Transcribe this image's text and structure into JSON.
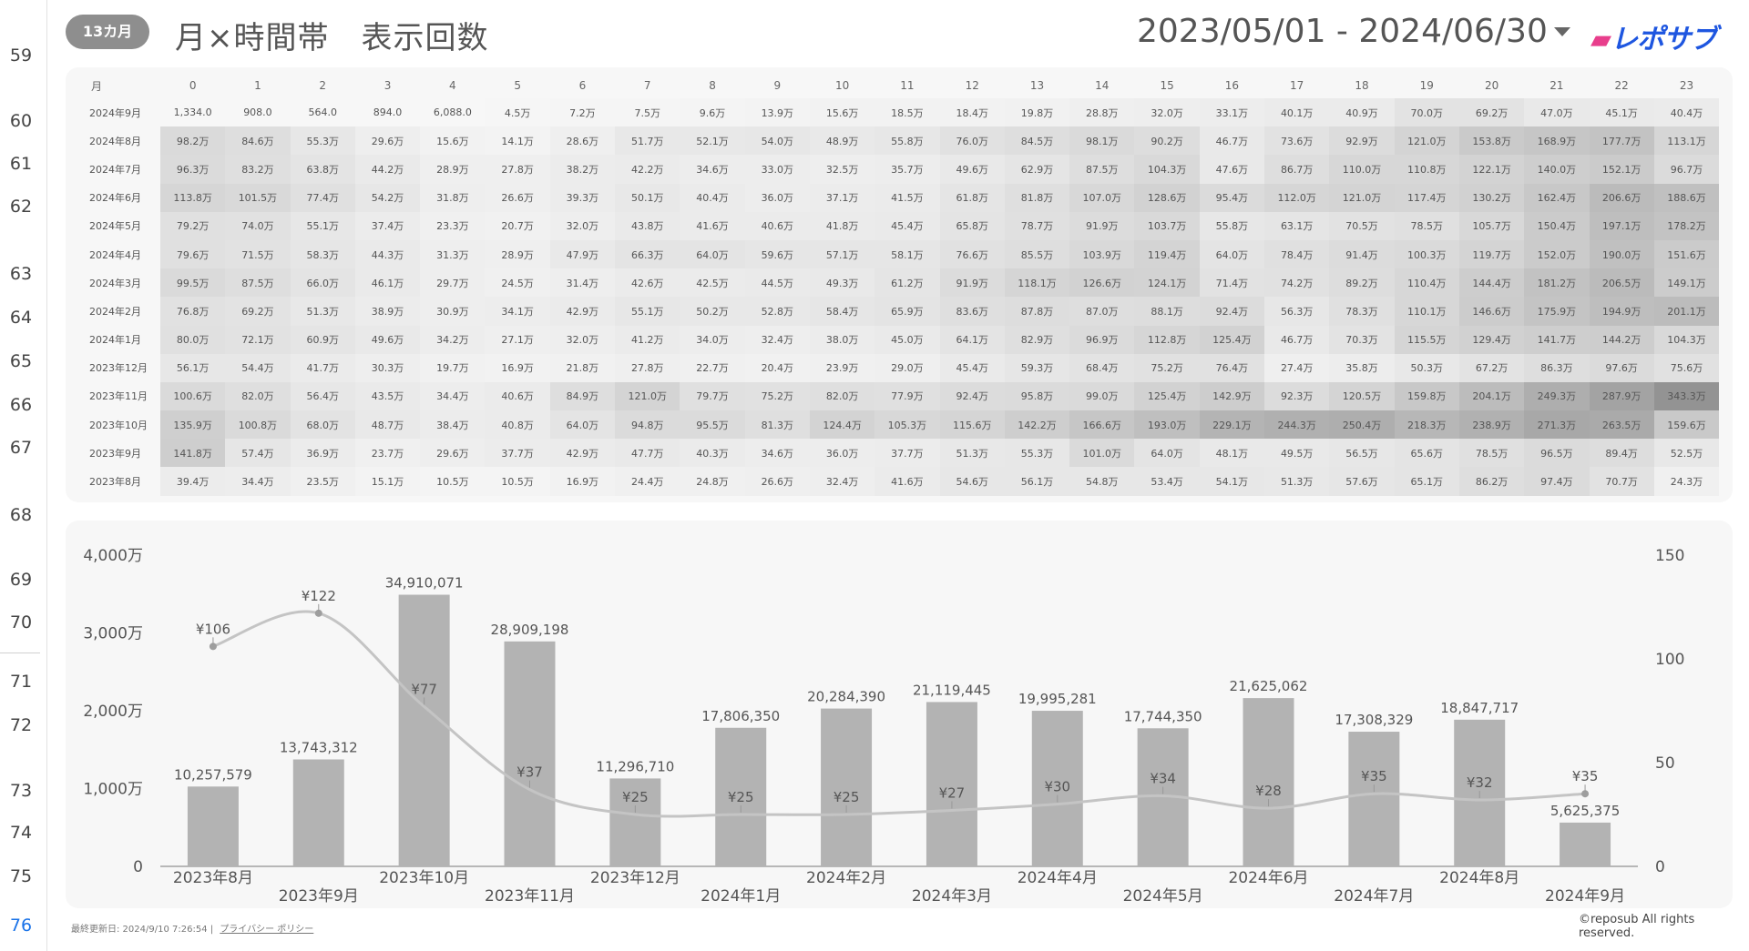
{
  "row_numbers": [
    "59",
    "60",
    "61",
    "62",
    "63",
    "64",
    "65",
    "66",
    "67",
    "68",
    "69",
    "70",
    "71",
    "72",
    "73",
    "74",
    "75",
    "76"
  ],
  "header": {
    "badge": "13カ月",
    "title": "月×時間帯　表示回数",
    "date_range": "2023/05/01 - 2024/06/30",
    "logo": "レポサブ"
  },
  "table": {
    "month_label": "月",
    "hours": [
      "0",
      "1",
      "2",
      "3",
      "4",
      "5",
      "6",
      "7",
      "8",
      "9",
      "10",
      "11",
      "12",
      "13",
      "14",
      "15",
      "16",
      "17",
      "18",
      "19",
      "20",
      "21",
      "22",
      "23"
    ],
    "rows": [
      {
        "month": "2024年9月",
        "values": [
          "1,334.0",
          "908.0",
          "564.0",
          "894.0",
          "6,088.0",
          "4.5万",
          "7.2万",
          "7.5万",
          "9.6万",
          "13.9万",
          "15.6万",
          "18.5万",
          "18.4万",
          "19.8万",
          "28.8万",
          "32.0万",
          "33.1万",
          "40.1万",
          "40.9万",
          "70.0万",
          "69.2万",
          "47.0万",
          "45.1万",
          "40.4万"
        ]
      },
      {
        "month": "2024年8月",
        "values": [
          "98.2万",
          "84.6万",
          "55.3万",
          "29.6万",
          "15.6万",
          "14.1万",
          "28.6万",
          "51.7万",
          "52.1万",
          "54.0万",
          "48.9万",
          "55.8万",
          "76.0万",
          "84.5万",
          "98.1万",
          "90.2万",
          "46.7万",
          "73.6万",
          "92.9万",
          "121.0万",
          "153.8万",
          "168.9万",
          "177.7万",
          "113.1万"
        ]
      },
      {
        "month": "2024年7月",
        "values": [
          "96.3万",
          "83.2万",
          "63.8万",
          "44.2万",
          "28.9万",
          "27.8万",
          "38.2万",
          "42.2万",
          "34.6万",
          "33.0万",
          "32.5万",
          "35.7万",
          "49.6万",
          "62.9万",
          "87.5万",
          "104.3万",
          "47.6万",
          "86.7万",
          "110.0万",
          "110.8万",
          "122.1万",
          "140.0万",
          "152.1万",
          "96.7万"
        ]
      },
      {
        "month": "2024年6月",
        "values": [
          "113.8万",
          "101.5万",
          "77.4万",
          "54.2万",
          "31.8万",
          "26.6万",
          "39.3万",
          "50.1万",
          "40.4万",
          "36.0万",
          "37.1万",
          "41.5万",
          "61.8万",
          "81.8万",
          "107.0万",
          "128.6万",
          "95.4万",
          "112.0万",
          "121.0万",
          "117.4万",
          "130.2万",
          "162.4万",
          "206.6万",
          "188.6万"
        ]
      },
      {
        "month": "2024年5月",
        "values": [
          "79.2万",
          "74.0万",
          "55.1万",
          "37.4万",
          "23.3万",
          "20.7万",
          "32.0万",
          "43.8万",
          "41.6万",
          "40.6万",
          "41.8万",
          "45.4万",
          "65.8万",
          "78.7万",
          "91.9万",
          "103.7万",
          "55.8万",
          "63.1万",
          "70.5万",
          "78.5万",
          "105.7万",
          "150.4万",
          "197.1万",
          "178.2万"
        ]
      },
      {
        "month": "2024年4月",
        "values": [
          "79.6万",
          "71.5万",
          "58.3万",
          "44.3万",
          "31.3万",
          "28.9万",
          "47.9万",
          "66.3万",
          "64.0万",
          "59.6万",
          "57.1万",
          "58.1万",
          "76.6万",
          "85.5万",
          "103.9万",
          "119.4万",
          "64.0万",
          "78.4万",
          "91.4万",
          "100.3万",
          "119.7万",
          "152.0万",
          "190.0万",
          "151.6万"
        ]
      },
      {
        "month": "2024年3月",
        "values": [
          "99.5万",
          "87.5万",
          "66.0万",
          "46.1万",
          "29.7万",
          "24.5万",
          "31.4万",
          "42.6万",
          "42.5万",
          "44.5万",
          "49.3万",
          "61.2万",
          "91.9万",
          "118.1万",
          "126.6万",
          "124.1万",
          "71.4万",
          "74.2万",
          "89.2万",
          "110.4万",
          "144.4万",
          "181.2万",
          "206.5万",
          "149.1万"
        ]
      },
      {
        "month": "2024年2月",
        "values": [
          "76.8万",
          "69.2万",
          "51.3万",
          "38.9万",
          "30.9万",
          "34.1万",
          "42.9万",
          "55.1万",
          "50.2万",
          "52.8万",
          "58.4万",
          "65.9万",
          "83.6万",
          "87.8万",
          "87.0万",
          "88.1万",
          "92.4万",
          "56.3万",
          "78.3万",
          "110.1万",
          "146.6万",
          "175.9万",
          "194.9万",
          "201.1万"
        ]
      },
      {
        "month": "2024年1月",
        "values": [
          "80.0万",
          "72.1万",
          "60.9万",
          "49.6万",
          "34.2万",
          "27.1万",
          "32.0万",
          "41.2万",
          "34.0万",
          "32.4万",
          "38.0万",
          "45.0万",
          "64.1万",
          "82.9万",
          "96.9万",
          "112.8万",
          "125.4万",
          "46.7万",
          "70.3万",
          "115.5万",
          "129.4万",
          "141.7万",
          "144.2万",
          "104.3万"
        ]
      },
      {
        "month": "2023年12月",
        "values": [
          "56.1万",
          "54.4万",
          "41.7万",
          "30.3万",
          "19.7万",
          "16.9万",
          "21.8万",
          "27.8万",
          "22.7万",
          "20.4万",
          "23.9万",
          "29.0万",
          "45.4万",
          "59.3万",
          "68.4万",
          "75.2万",
          "76.4万",
          "27.4万",
          "35.8万",
          "50.3万",
          "67.2万",
          "86.3万",
          "97.6万",
          "75.6万"
        ]
      },
      {
        "month": "2023年11月",
        "values": [
          "100.6万",
          "82.0万",
          "56.4万",
          "43.5万",
          "34.4万",
          "40.6万",
          "84.9万",
          "121.0万",
          "79.7万",
          "75.2万",
          "82.0万",
          "77.9万",
          "92.4万",
          "95.8万",
          "99.0万",
          "125.4万",
          "142.9万",
          "92.3万",
          "120.5万",
          "159.8万",
          "204.1万",
          "249.3万",
          "287.9万",
          "343.3万"
        ]
      },
      {
        "month": "2023年10月",
        "values": [
          "135.9万",
          "100.8万",
          "68.0万",
          "48.7万",
          "38.4万",
          "40.8万",
          "64.0万",
          "94.8万",
          "95.5万",
          "81.3万",
          "124.4万",
          "105.3万",
          "115.6万",
          "142.2万",
          "166.6万",
          "193.0万",
          "229.1万",
          "244.3万",
          "250.4万",
          "218.3万",
          "238.9万",
          "271.3万",
          "263.5万",
          "159.6万"
        ]
      },
      {
        "month": "2023年9月",
        "values": [
          "141.8万",
          "57.4万",
          "36.9万",
          "23.7万",
          "29.6万",
          "37.7万",
          "42.9万",
          "47.7万",
          "40.3万",
          "34.6万",
          "36.0万",
          "37.7万",
          "51.3万",
          "55.3万",
          "101.0万",
          "64.0万",
          "48.1万",
          "49.5万",
          "56.5万",
          "65.6万",
          "78.5万",
          "96.5万",
          "89.4万",
          "52.5万"
        ]
      },
      {
        "month": "2023年8月",
        "values": [
          "39.4万",
          "34.4万",
          "23.5万",
          "15.1万",
          "10.5万",
          "10.5万",
          "16.9万",
          "24.4万",
          "24.8万",
          "26.6万",
          "32.4万",
          "41.6万",
          "54.6万",
          "56.1万",
          "54.8万",
          "53.4万",
          "54.1万",
          "51.3万",
          "57.6万",
          "65.1万",
          "86.2万",
          "97.4万",
          "70.7万",
          "24.3万"
        ]
      }
    ]
  },
  "chart_data": {
    "type": "bar",
    "categories": [
      "2023年8月",
      "2023年9月",
      "2023年10月",
      "2023年11月",
      "2023年12月",
      "2024年1月",
      "2024年2月",
      "2024年3月",
      "2024年4月",
      "2024年5月",
      "2024年6月",
      "2024年7月",
      "2024年8月",
      "2024年9月"
    ],
    "series": [
      {
        "type": "bar",
        "values": [
          10257579,
          13743312,
          34910071,
          28909198,
          11296710,
          17806350,
          20284390,
          21119445,
          19995281,
          17744350,
          21625062,
          17308329,
          18847717,
          5625375
        ],
        "labels": [
          "10,257,579",
          "13,743,312",
          "34,910,071",
          "28,909,198",
          "11,296,710",
          "17,806,350",
          "20,284,390",
          "21,119,445",
          "19,995,281",
          "17,744,350",
          "21,625,062",
          "17,308,329",
          "18,847,717",
          "5,625,375"
        ]
      },
      {
        "type": "line",
        "axis": "right",
        "values": [
          106,
          122,
          77,
          37,
          25,
          25,
          25,
          27,
          30,
          34,
          28,
          35,
          32,
          35
        ],
        "labels": [
          "¥106",
          "¥122",
          "¥77",
          "¥37",
          "¥25",
          "¥25",
          "¥25",
          "¥27",
          "¥30",
          "¥34",
          "¥28",
          "¥35",
          "¥32",
          "¥35"
        ]
      }
    ],
    "y_left": {
      "ticks": [
        0,
        10000000,
        20000000,
        30000000,
        40000000
      ],
      "tick_labels": [
        "0",
        "1,000万",
        "2,000万",
        "3,000万",
        "4,000万"
      ],
      "ylim": [
        0,
        40000000
      ]
    },
    "y_right": {
      "ticks": [
        0,
        50,
        100,
        150
      ],
      "tick_labels": [
        "0",
        "50",
        "100",
        "150"
      ],
      "ylim": [
        0,
        150
      ]
    },
    "colors": {
      "bar": "#b3b3b3",
      "line": "#c4c4c4",
      "point": "#9e9e9e"
    }
  },
  "footer": {
    "updated": "最終更新日: 2024/9/10 7:26:54",
    "separator": "|",
    "privacy": "プライバシー ポリシー",
    "copyright": "©reposub All rights reserved."
  }
}
